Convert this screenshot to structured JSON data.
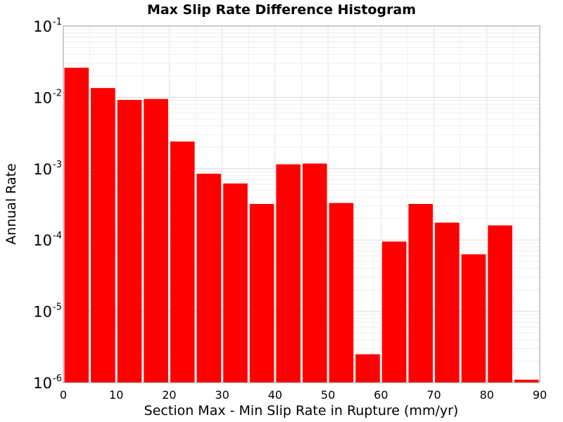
{
  "chart_data": {
    "type": "bar",
    "title": "Max Slip Rate Difference Histogram",
    "xlabel": "Section Max - Min Slip Rate in Rupture (mm/yr)",
    "ylabel": "Annual Rate",
    "x_scale": "linear",
    "y_scale": "log",
    "xlim": [
      0,
      90
    ],
    "ylim": [
      1e-06,
      0.1
    ],
    "bin_width": 5,
    "x_ticks": [
      "0",
      "10",
      "20",
      "30",
      "40",
      "50",
      "60",
      "70",
      "80",
      "90"
    ],
    "y_ticks": [
      {
        "base": "10",
        "exp": "-6"
      },
      {
        "base": "10",
        "exp": "-5"
      },
      {
        "base": "10",
        "exp": "-4"
      },
      {
        "base": "10",
        "exp": "-3"
      },
      {
        "base": "10",
        "exp": "-2"
      },
      {
        "base": "10",
        "exp": "-1"
      }
    ],
    "grid": true,
    "bar_color": "#ff0000",
    "bars": [
      {
        "x": 2.5,
        "value": 0.026
      },
      {
        "x": 7.5,
        "value": 0.0135
      },
      {
        "x": 12.5,
        "value": 0.0092
      },
      {
        "x": 17.5,
        "value": 0.0095
      },
      {
        "x": 22.5,
        "value": 0.0024
      },
      {
        "x": 27.5,
        "value": 0.00085
      },
      {
        "x": 32.5,
        "value": 0.00062
      },
      {
        "x": 37.5,
        "value": 0.00032
      },
      {
        "x": 42.5,
        "value": 0.00115
      },
      {
        "x": 47.5,
        "value": 0.00118
      },
      {
        "x": 52.5,
        "value": 0.00033
      },
      {
        "x": 57.5,
        "value": 2.5e-06
      },
      {
        "x": 62.5,
        "value": 9.5e-05
      },
      {
        "x": 67.5,
        "value": 0.00032
      },
      {
        "x": 72.5,
        "value": 0.000175
      },
      {
        "x": 77.5,
        "value": 6.3e-05
      },
      {
        "x": 82.5,
        "value": 0.00016
      },
      {
        "x": 87.5,
        "value": 1.1e-06
      }
    ]
  }
}
